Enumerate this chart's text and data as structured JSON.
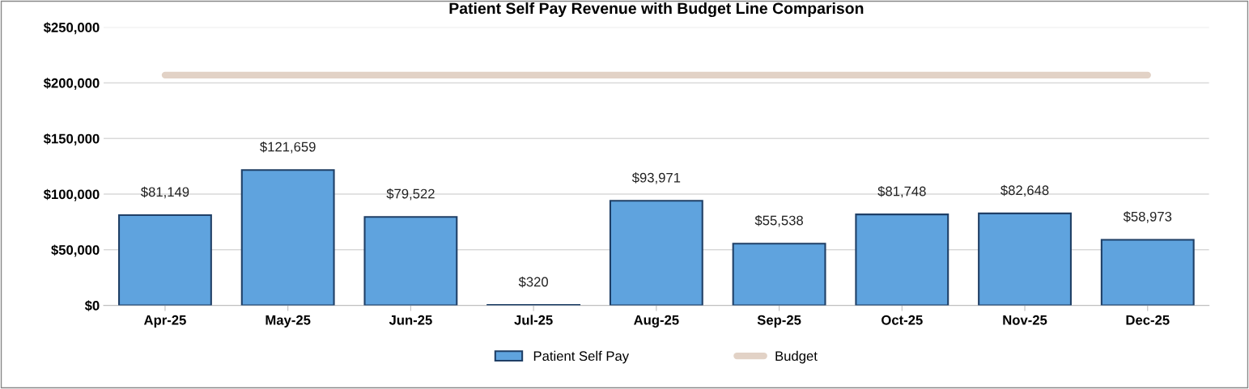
{
  "chart_data": {
    "type": "bar",
    "title": "Patient Self Pay Revenue with Budget Line Comparison",
    "categories": [
      "Apr-25",
      "May-25",
      "Jun-25",
      "Jul-25",
      "Aug-25",
      "Sep-25",
      "Oct-25",
      "Nov-25",
      "Dec-25"
    ],
    "series": [
      {
        "name": "Patient Self Pay",
        "color": "#5fa3de",
        "values": [
          81149,
          121659,
          79522,
          320,
          93971,
          55538,
          81748,
          82648,
          58973
        ],
        "value_labels": [
          "$81,149",
          "$121,659",
          "$79,522",
          "$320",
          "$93,971",
          "$55,538",
          "$81,748",
          "$82,648",
          "$58,973"
        ]
      },
      {
        "name": "Budget",
        "type": "line",
        "color": "#e2d2c6",
        "values": [
          207000,
          207000,
          207000,
          207000,
          207000,
          207000,
          207000,
          207000,
          207000
        ]
      }
    ],
    "ylim": [
      0,
      250000
    ],
    "yticks": [
      {
        "value": 0,
        "label": "$0"
      },
      {
        "value": 50000,
        "label": "$50,000"
      },
      {
        "value": 100000,
        "label": "$100,000"
      },
      {
        "value": 150000,
        "label": "$150,000"
      },
      {
        "value": 200000,
        "label": "$200,000"
      },
      {
        "value": 250000,
        "label": "$250,000"
      }
    ],
    "grid": "y",
    "legend": "bottom"
  }
}
